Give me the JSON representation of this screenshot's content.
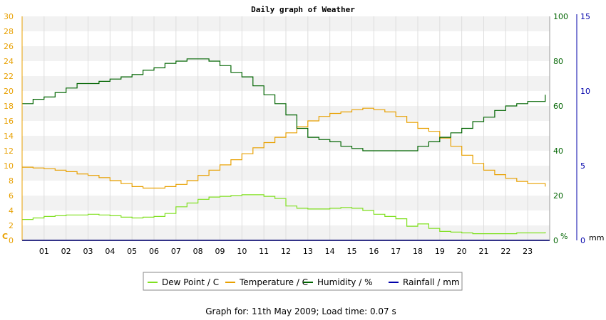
{
  "chart_data": {
    "type": "line",
    "title": "Daily graph of Weather",
    "footer": "Graph for: 11th May 2009; Load time: 0.07 s",
    "x_ticks": [
      "01",
      "02",
      "03",
      "04",
      "05",
      "06",
      "07",
      "08",
      "09",
      "10",
      "11",
      "12",
      "13",
      "14",
      "15",
      "16",
      "17",
      "18",
      "19",
      "20",
      "21",
      "22",
      "23"
    ],
    "xlim": [
      0,
      24
    ],
    "left_axis": {
      "unit": "C",
      "ylim": [
        0,
        30
      ],
      "ticks": [
        "0",
        "2",
        "4",
        "6",
        "8",
        "10",
        "12",
        "14",
        "16",
        "18",
        "20",
        "22",
        "24",
        "26",
        "28",
        "30"
      ],
      "color": "#e8a000"
    },
    "right_axis_1": {
      "unit": "%",
      "ylim": [
        0,
        100
      ],
      "ticks": [
        "0",
        "20",
        "40",
        "60",
        "80",
        "100"
      ],
      "color": "#006400"
    },
    "right_axis_2": {
      "unit": "mm",
      "ylim": [
        0,
        15
      ],
      "ticks": [
        "0",
        "5",
        "10",
        "15"
      ],
      "color": "#0000aa"
    },
    "grid": true,
    "legend_position": "bottom",
    "series": [
      {
        "name": "Dew Point / C",
        "axis": "left",
        "color": "#80e020",
        "x": [
          0,
          0.5,
          1,
          1.5,
          2,
          2.5,
          3,
          3.5,
          4,
          4.5,
          5,
          5.5,
          6,
          6.5,
          7,
          7.5,
          8,
          8.5,
          9,
          9.5,
          10,
          10.5,
          11,
          11.5,
          12,
          12.5,
          13,
          13.5,
          14,
          14.5,
          15,
          15.5,
          16,
          16.5,
          17,
          17.5,
          18,
          18.5,
          19,
          19.5,
          20,
          20.5,
          21,
          21.5,
          22,
          22.5,
          23,
          23.8
        ],
        "y": [
          2.8,
          3.0,
          3.2,
          3.3,
          3.4,
          3.4,
          3.5,
          3.4,
          3.3,
          3.1,
          3.0,
          3.1,
          3.2,
          3.6,
          4.5,
          5.0,
          5.5,
          5.8,
          5.9,
          6.0,
          6.1,
          6.1,
          5.9,
          5.6,
          4.6,
          4.3,
          4.2,
          4.2,
          4.3,
          4.4,
          4.3,
          4.0,
          3.5,
          3.2,
          2.9,
          1.9,
          2.2,
          1.6,
          1.2,
          1.1,
          1.0,
          0.9,
          0.9,
          0.9,
          0.9,
          1.0,
          1.0,
          1.1
        ]
      },
      {
        "name": "Temperature / C",
        "axis": "left",
        "color": "#e8a000",
        "x": [
          0,
          0.5,
          1,
          1.5,
          2,
          2.5,
          3,
          3.5,
          4,
          4.5,
          5,
          5.5,
          6,
          6.5,
          7,
          7.5,
          8,
          8.5,
          9,
          9.5,
          10,
          10.5,
          11,
          11.5,
          12,
          12.5,
          13,
          13.5,
          14,
          14.5,
          15,
          15.5,
          16,
          16.5,
          17,
          17.5,
          18,
          18.5,
          19,
          19.5,
          20,
          20.5,
          21,
          21.5,
          22,
          22.5,
          23,
          23.8
        ],
        "y": [
          9.8,
          9.7,
          9.6,
          9.4,
          9.2,
          8.9,
          8.7,
          8.4,
          8.0,
          7.6,
          7.2,
          7.0,
          7.0,
          7.2,
          7.5,
          8.0,
          8.7,
          9.4,
          10.1,
          10.8,
          11.6,
          12.4,
          13.1,
          13.8,
          14.4,
          15.2,
          16.0,
          16.6,
          17.0,
          17.2,
          17.5,
          17.7,
          17.5,
          17.2,
          16.6,
          15.8,
          15.0,
          14.6,
          13.7,
          12.6,
          11.4,
          10.3,
          9.4,
          8.8,
          8.3,
          7.9,
          7.6,
          7.2
        ]
      },
      {
        "name": "Humidity / %",
        "axis": "right_1",
        "color": "#006400",
        "x": [
          0,
          0.5,
          1,
          1.5,
          2,
          2.5,
          3,
          3.5,
          4,
          4.5,
          5,
          5.5,
          6,
          6.5,
          7,
          7.5,
          8,
          8.5,
          9,
          9.5,
          10,
          10.5,
          11,
          11.5,
          12,
          12.5,
          13,
          13.5,
          14,
          14.5,
          15,
          15.5,
          16,
          16.5,
          17,
          17.5,
          18,
          18.5,
          19,
          19.5,
          20,
          20.5,
          21,
          21.5,
          22,
          22.5,
          23,
          23.8
        ],
        "y": [
          61,
          63,
          64,
          66,
          68,
          70,
          70,
          71,
          72,
          73,
          74,
          76,
          77,
          79,
          80,
          81,
          81,
          80,
          78,
          75,
          73,
          69,
          65,
          61,
          56,
          50,
          46,
          45,
          44,
          42,
          41,
          40,
          40,
          40,
          40,
          40,
          42,
          44,
          46,
          48,
          50,
          53,
          55,
          58,
          60,
          61,
          62,
          65
        ]
      },
      {
        "name": "Rainfall / mm",
        "axis": "right_2",
        "color": "#0000aa",
        "x": [
          0,
          24
        ],
        "y": [
          0,
          0
        ]
      }
    ]
  }
}
